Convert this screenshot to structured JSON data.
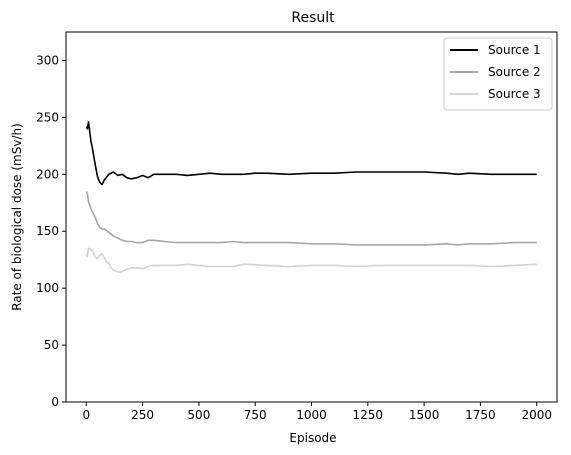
{
  "chart_data": {
    "type": "line",
    "title": "Result",
    "xlabel": "Episode",
    "ylabel": "Rate of biological dose (mSv/h)",
    "xlim": [
      -90,
      2090
    ],
    "ylim": [
      0,
      325
    ],
    "xticks": [
      0,
      250,
      500,
      750,
      1000,
      1250,
      1500,
      1750,
      2000
    ],
    "yticks": [
      0,
      50,
      100,
      150,
      200,
      250,
      300
    ],
    "grid": false,
    "legend_position": "upper right",
    "series": [
      {
        "name": "Source 1",
        "color": "#000000",
        "x": [
          0,
          5,
          10,
          20,
          30,
          40,
          50,
          60,
          70,
          80,
          100,
          120,
          140,
          160,
          180,
          200,
          225,
          250,
          275,
          300,
          325,
          350,
          400,
          450,
          500,
          550,
          600,
          650,
          700,
          750,
          800,
          900,
          1000,
          1100,
          1200,
          1300,
          1400,
          1500,
          1600,
          1650,
          1700,
          1800,
          1900,
          2000
        ],
        "y": [
          242,
          240,
          246,
          230,
          220,
          208,
          198,
          193,
          191,
          195,
          200,
          202,
          199,
          200,
          197,
          196,
          197,
          199,
          197,
          200,
          200,
          200,
          200,
          199,
          200,
          201,
          200,
          200,
          200,
          201,
          201,
          200,
          201,
          201,
          202,
          202,
          202,
          202,
          201,
          200,
          201,
          200,
          200,
          200
        ]
      },
      {
        "name": "Source 2",
        "color": "#a6a6a6",
        "x": [
          0,
          5,
          10,
          20,
          30,
          40,
          50,
          60,
          70,
          80,
          100,
          120,
          140,
          160,
          180,
          200,
          225,
          250,
          275,
          300,
          350,
          400,
          450,
          500,
          550,
          600,
          650,
          700,
          800,
          900,
          1000,
          1100,
          1200,
          1300,
          1400,
          1500,
          1600,
          1650,
          1700,
          1800,
          1900,
          2000
        ],
        "y": [
          185,
          183,
          176,
          170,
          166,
          162,
          157,
          153,
          152,
          152,
          149,
          146,
          144,
          142,
          141,
          141,
          140,
          140,
          142,
          142,
          141,
          140,
          140,
          140,
          140,
          140,
          141,
          140,
          140,
          140,
          139,
          139,
          138,
          138,
          138,
          138,
          139,
          138,
          139,
          139,
          140,
          140
        ]
      },
      {
        "name": "Source 3",
        "color": "#d3d3d3",
        "x": [
          0,
          5,
          10,
          20,
          30,
          40,
          50,
          60,
          70,
          80,
          90,
          100,
          110,
          120,
          130,
          150,
          175,
          200,
          225,
          250,
          275,
          300,
          350,
          400,
          450,
          500,
          550,
          600,
          650,
          700,
          800,
          900,
          1000,
          1100,
          1200,
          1300,
          1400,
          1500,
          1600,
          1700,
          1800,
          1900,
          2000
        ],
        "y": [
          130,
          128,
          135,
          134,
          132,
          127,
          126,
          129,
          130,
          127,
          123,
          122,
          118,
          116,
          115,
          114,
          116,
          118,
          118,
          117,
          119,
          120,
          120,
          120,
          121,
          120,
          119,
          119,
          119,
          121,
          120,
          119,
          120,
          120,
          119,
          120,
          120,
          120,
          120,
          120,
          119,
          120,
          121
        ]
      }
    ]
  }
}
